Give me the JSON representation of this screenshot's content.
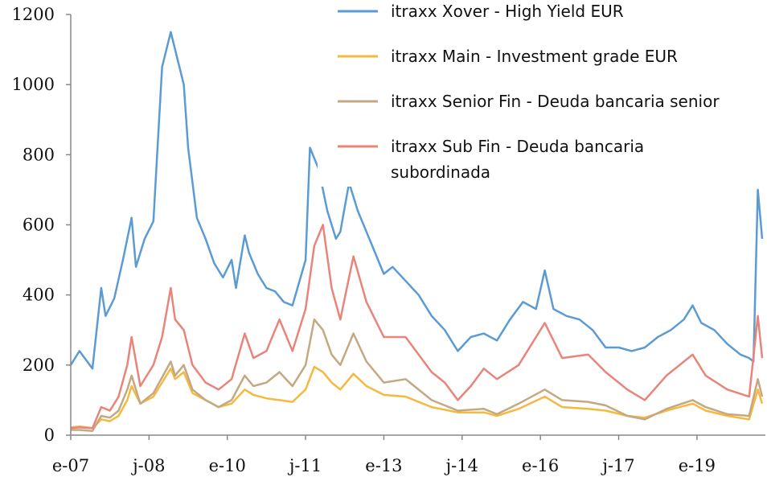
{
  "chart_data": {
    "type": "line",
    "title": "",
    "xlabel": "",
    "ylabel": "",
    "ylim": [
      0,
      1200
    ],
    "yticks": [
      "0",
      "200",
      "400",
      "600",
      "800",
      "1000",
      "1200"
    ],
    "xlim": [
      "2007-01",
      "2020-04"
    ],
    "xticks": [
      {
        "label": "e-07",
        "date": "2007-01"
      },
      {
        "label": "j-08",
        "date": "2008-07"
      },
      {
        "label": "e-10",
        "date": "2010-01"
      },
      {
        "label": "j-11",
        "date": "2011-07"
      },
      {
        "label": "e-13",
        "date": "2013-01"
      },
      {
        "label": "j-14",
        "date": "2014-07"
      },
      {
        "label": "e-16",
        "date": "2016-01"
      },
      {
        "label": "j-17",
        "date": "2017-07"
      },
      {
        "label": "e-19",
        "date": "2019-01"
      }
    ],
    "grid": false,
    "legend_position": "top-right",
    "series": [
      {
        "name": "itraxx Xover - High Yield EUR",
        "color": "#5b9bd5",
        "points": [
          [
            "2007-01",
            200
          ],
          [
            "2007-03",
            240
          ],
          [
            "2007-06",
            190
          ],
          [
            "2007-08",
            420
          ],
          [
            "2007-09",
            340
          ],
          [
            "2007-11",
            390
          ],
          [
            "2008-01",
            500
          ],
          [
            "2008-03",
            620
          ],
          [
            "2008-04",
            480
          ],
          [
            "2008-06",
            560
          ],
          [
            "2008-08",
            610
          ],
          [
            "2008-10",
            1050
          ],
          [
            "2008-12",
            1150
          ],
          [
            "2009-01",
            1100
          ],
          [
            "2009-03",
            1000
          ],
          [
            "2009-04",
            820
          ],
          [
            "2009-06",
            620
          ],
          [
            "2009-08",
            560
          ],
          [
            "2009-10",
            490
          ],
          [
            "2009-12",
            450
          ],
          [
            "2010-02",
            500
          ],
          [
            "2010-03",
            420
          ],
          [
            "2010-05",
            570
          ],
          [
            "2010-06",
            520
          ],
          [
            "2010-08",
            460
          ],
          [
            "2010-10",
            420
          ],
          [
            "2010-12",
            410
          ],
          [
            "2011-02",
            380
          ],
          [
            "2011-04",
            370
          ],
          [
            "2011-07",
            500
          ],
          [
            "2011-08",
            820
          ],
          [
            "2011-10",
            760
          ],
          [
            "2011-12",
            640
          ],
          [
            "2012-02",
            560
          ],
          [
            "2012-03",
            580
          ],
          [
            "2012-05",
            720
          ],
          [
            "2012-07",
            640
          ],
          [
            "2012-09",
            580
          ],
          [
            "2012-11",
            520
          ],
          [
            "2013-01",
            460
          ],
          [
            "2013-03",
            480
          ],
          [
            "2013-06",
            440
          ],
          [
            "2013-09",
            400
          ],
          [
            "2013-12",
            340
          ],
          [
            "2014-03",
            300
          ],
          [
            "2014-06",
            240
          ],
          [
            "2014-09",
            280
          ],
          [
            "2014-12",
            290
          ],
          [
            "2015-03",
            270
          ],
          [
            "2015-06",
            330
          ],
          [
            "2015-09",
            380
          ],
          [
            "2015-12",
            360
          ],
          [
            "2016-02",
            470
          ],
          [
            "2016-04",
            360
          ],
          [
            "2016-07",
            340
          ],
          [
            "2016-10",
            330
          ],
          [
            "2017-01",
            300
          ],
          [
            "2017-04",
            250
          ],
          [
            "2017-07",
            250
          ],
          [
            "2017-10",
            240
          ],
          [
            "2018-01",
            250
          ],
          [
            "2018-04",
            280
          ],
          [
            "2018-07",
            300
          ],
          [
            "2018-10",
            330
          ],
          [
            "2018-12",
            370
          ],
          [
            "2019-02",
            320
          ],
          [
            "2019-05",
            300
          ],
          [
            "2019-08",
            260
          ],
          [
            "2019-11",
            230
          ],
          [
            "2020-01",
            220
          ],
          [
            "2020-02",
            210
          ],
          [
            "2020-03",
            700
          ],
          [
            "2020-04",
            560
          ]
        ]
      },
      {
        "name": "itraxx Main - Investment grade EUR",
        "color": "#f5b940",
        "points": [
          [
            "2007-01",
            22
          ],
          [
            "2007-03",
            25
          ],
          [
            "2007-06",
            20
          ],
          [
            "2007-08",
            45
          ],
          [
            "2007-10",
            40
          ],
          [
            "2007-12",
            55
          ],
          [
            "2008-02",
            100
          ],
          [
            "2008-03",
            140
          ],
          [
            "2008-05",
            90
          ],
          [
            "2008-08",
            110
          ],
          [
            "2008-10",
            150
          ],
          [
            "2008-12",
            190
          ],
          [
            "2009-01",
            160
          ],
          [
            "2009-03",
            180
          ],
          [
            "2009-05",
            120
          ],
          [
            "2009-08",
            100
          ],
          [
            "2009-11",
            80
          ],
          [
            "2010-02",
            90
          ],
          [
            "2010-05",
            130
          ],
          [
            "2010-07",
            115
          ],
          [
            "2010-10",
            105
          ],
          [
            "2011-01",
            100
          ],
          [
            "2011-04",
            95
          ],
          [
            "2011-07",
            130
          ],
          [
            "2011-09",
            195
          ],
          [
            "2011-11",
            180
          ],
          [
            "2012-01",
            150
          ],
          [
            "2012-03",
            130
          ],
          [
            "2012-06",
            175
          ],
          [
            "2012-09",
            140
          ],
          [
            "2013-01",
            115
          ],
          [
            "2013-06",
            110
          ],
          [
            "2013-12",
            80
          ],
          [
            "2014-06",
            65
          ],
          [
            "2014-12",
            65
          ],
          [
            "2015-03",
            55
          ],
          [
            "2015-08",
            75
          ],
          [
            "2016-02",
            110
          ],
          [
            "2016-06",
            80
          ],
          [
            "2016-12",
            75
          ],
          [
            "2017-04",
            70
          ],
          [
            "2017-09",
            55
          ],
          [
            "2018-01",
            50
          ],
          [
            "2018-06",
            70
          ],
          [
            "2018-12",
            90
          ],
          [
            "2019-03",
            70
          ],
          [
            "2019-08",
            55
          ],
          [
            "2020-01",
            45
          ],
          [
            "2020-03",
            130
          ],
          [
            "2020-04",
            90
          ]
        ]
      },
      {
        "name": "itraxx Senior Fin - Deuda bancaria senior",
        "color": "#c4a882",
        "points": [
          [
            "2007-01",
            15
          ],
          [
            "2007-03",
            15
          ],
          [
            "2007-06",
            12
          ],
          [
            "2007-08",
            55
          ],
          [
            "2007-10",
            50
          ],
          [
            "2007-12",
            70
          ],
          [
            "2008-02",
            130
          ],
          [
            "2008-03",
            170
          ],
          [
            "2008-05",
            90
          ],
          [
            "2008-08",
            120
          ],
          [
            "2008-10",
            165
          ],
          [
            "2008-12",
            210
          ],
          [
            "2009-01",
            170
          ],
          [
            "2009-03",
            200
          ],
          [
            "2009-05",
            130
          ],
          [
            "2009-08",
            100
          ],
          [
            "2009-11",
            80
          ],
          [
            "2010-02",
            100
          ],
          [
            "2010-05",
            170
          ],
          [
            "2010-07",
            140
          ],
          [
            "2010-10",
            150
          ],
          [
            "2011-01",
            180
          ],
          [
            "2011-04",
            140
          ],
          [
            "2011-07",
            200
          ],
          [
            "2011-09",
            330
          ],
          [
            "2011-11",
            300
          ],
          [
            "2012-01",
            230
          ],
          [
            "2012-03",
            200
          ],
          [
            "2012-06",
            290
          ],
          [
            "2012-09",
            210
          ],
          [
            "2013-01",
            150
          ],
          [
            "2013-06",
            160
          ],
          [
            "2013-12",
            100
          ],
          [
            "2014-06",
            70
          ],
          [
            "2014-12",
            75
          ],
          [
            "2015-03",
            60
          ],
          [
            "2015-08",
            90
          ],
          [
            "2016-02",
            130
          ],
          [
            "2016-06",
            100
          ],
          [
            "2016-12",
            95
          ],
          [
            "2017-04",
            85
          ],
          [
            "2017-09",
            55
          ],
          [
            "2018-01",
            45
          ],
          [
            "2018-06",
            75
          ],
          [
            "2018-12",
            100
          ],
          [
            "2019-03",
            80
          ],
          [
            "2019-08",
            60
          ],
          [
            "2020-01",
            55
          ],
          [
            "2020-03",
            160
          ],
          [
            "2020-04",
            110
          ]
        ]
      },
      {
        "name": "itraxx Sub Fin - Deuda bancaria subordinada",
        "color": "#e8847a",
        "points": [
          [
            "2007-01",
            20
          ],
          [
            "2007-03",
            22
          ],
          [
            "2007-06",
            20
          ],
          [
            "2007-08",
            80
          ],
          [
            "2007-10",
            70
          ],
          [
            "2007-12",
            110
          ],
          [
            "2008-02",
            200
          ],
          [
            "2008-03",
            280
          ],
          [
            "2008-05",
            140
          ],
          [
            "2008-08",
            200
          ],
          [
            "2008-10",
            280
          ],
          [
            "2008-12",
            420
          ],
          [
            "2009-01",
            330
          ],
          [
            "2009-03",
            300
          ],
          [
            "2009-05",
            200
          ],
          [
            "2009-08",
            150
          ],
          [
            "2009-11",
            130
          ],
          [
            "2010-02",
            160
          ],
          [
            "2010-05",
            290
          ],
          [
            "2010-07",
            220
          ],
          [
            "2010-10",
            240
          ],
          [
            "2011-01",
            330
          ],
          [
            "2011-04",
            240
          ],
          [
            "2011-07",
            360
          ],
          [
            "2011-09",
            540
          ],
          [
            "2011-11",
            600
          ],
          [
            "2012-01",
            420
          ],
          [
            "2012-03",
            330
          ],
          [
            "2012-06",
            510
          ],
          [
            "2012-09",
            380
          ],
          [
            "2013-01",
            280
          ],
          [
            "2013-06",
            280
          ],
          [
            "2013-12",
            180
          ],
          [
            "2014-03",
            150
          ],
          [
            "2014-06",
            100
          ],
          [
            "2014-09",
            140
          ],
          [
            "2014-12",
            190
          ],
          [
            "2015-03",
            160
          ],
          [
            "2015-08",
            200
          ],
          [
            "2016-02",
            320
          ],
          [
            "2016-06",
            220
          ],
          [
            "2016-12",
            230
          ],
          [
            "2017-04",
            180
          ],
          [
            "2017-09",
            130
          ],
          [
            "2018-01",
            100
          ],
          [
            "2018-06",
            170
          ],
          [
            "2018-12",
            230
          ],
          [
            "2019-03",
            170
          ],
          [
            "2019-08",
            130
          ],
          [
            "2020-01",
            110
          ],
          [
            "2020-03",
            340
          ],
          [
            "2020-04",
            220
          ]
        ]
      }
    ]
  },
  "legend": {
    "xover": "itraxx Xover - High Yield EUR",
    "main": "itraxx Main - Investment grade EUR",
    "senior": "itraxx Senior Fin - Deuda bancaria senior",
    "sub_line1": "itraxx Sub Fin - Deuda bancaria",
    "sub_line2": "subordinada"
  }
}
